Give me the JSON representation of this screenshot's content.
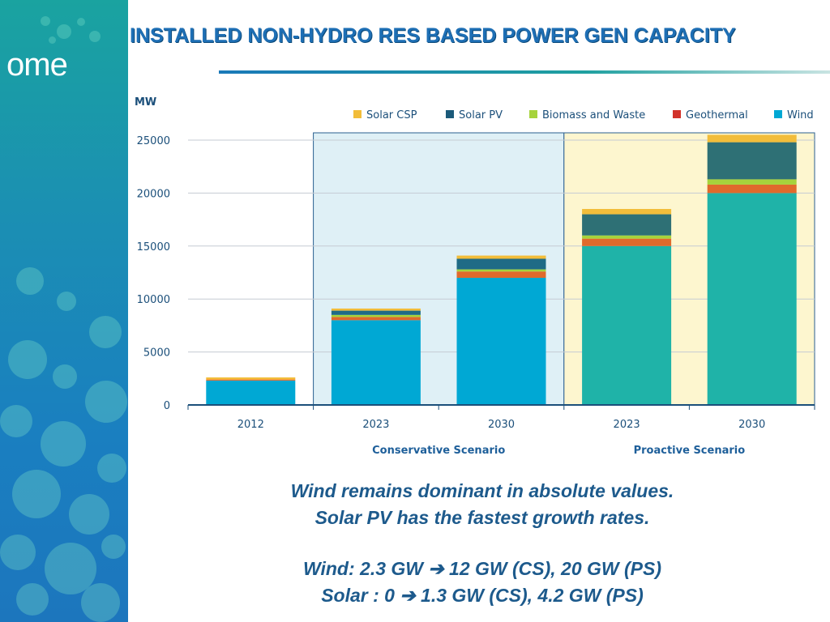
{
  "slide": {
    "title": "INSTALLED  NON-HYDRO RES BASED POWER GEN CAPACITY",
    "logo": "ome",
    "caption": [
      "Wind remains dominant in absolute values.",
      "Solar PV has the fastest growth rates.",
      "Wind: 2.3 GW ➔ 12 GW (CS), 20 GW (PS)",
      "Solar : 0 ➔ 1.3 GW (CS), 4.2 GW (PS)"
    ],
    "colors": {
      "title": "#1e6fb5",
      "caption": "#1d5a8c"
    }
  },
  "chart_data": {
    "type": "bar",
    "stacked": true,
    "ylabel": "MW",
    "ylim": [
      0,
      25000
    ],
    "yticks": [
      "0",
      "5000",
      "10000",
      "15000",
      "20000",
      "25000"
    ],
    "ytick_values": [
      0,
      5000,
      10000,
      15000,
      20000,
      25000
    ],
    "grid": true,
    "legend_position": "top",
    "categories": [
      "2012",
      "2023",
      "2030",
      "2023",
      "2030"
    ],
    "groups": [
      {
        "label": "",
        "indices": [
          0
        ],
        "background": "none"
      },
      {
        "label": "Conservative Scenario",
        "indices": [
          1,
          2
        ],
        "background": "#dff0f6"
      },
      {
        "label": "Proactive Scenario",
        "indices": [
          3,
          4
        ],
        "background": "#fdf6cf"
      }
    ],
    "series": [
      {
        "name": "Wind",
        "colors": [
          "#00a8d4",
          "#00a8d4",
          "#00a8d4",
          "#1fb3a8",
          "#1fb3a8"
        ],
        "legend_color": "#00a8d4",
        "values": [
          2300,
          8000,
          12000,
          15000,
          20000
        ]
      },
      {
        "name": "Geothermal",
        "colors": [
          "#e06a2c",
          "#e06a2c",
          "#e06a2c",
          "#e06a2c",
          "#e06a2c"
        ],
        "legend_color": "#d2322a",
        "values": [
          100,
          300,
          600,
          700,
          800
        ]
      },
      {
        "name": "Biomass and Waste",
        "colors": [
          "#a6d33c",
          "#a6d33c",
          "#a6d33c",
          "#a6d33c",
          "#a6d33c"
        ],
        "legend_color": "#a6d33c",
        "values": [
          0,
          200,
          200,
          300,
          500
        ]
      },
      {
        "name": "Solar PV",
        "colors": [
          "#1f6b86",
          "#1f6b86",
          "#1f6b86",
          "#2e7075",
          "#2e7075"
        ],
        "legend_color": "#1b5a7a",
        "values": [
          0,
          400,
          1000,
          2000,
          3500
        ]
      },
      {
        "name": "Solar CSP",
        "colors": [
          "#f2bd3a",
          "#f2bd3a",
          "#f2bd3a",
          "#f2bd3a",
          "#f2bd3a"
        ],
        "legend_color": "#f2bd3a",
        "values": [
          200,
          200,
          300,
          500,
          700
        ]
      }
    ],
    "legend_order": [
      "Solar CSP",
      "Solar PV",
      "Biomass and Waste",
      "Geothermal",
      "Wind"
    ]
  }
}
